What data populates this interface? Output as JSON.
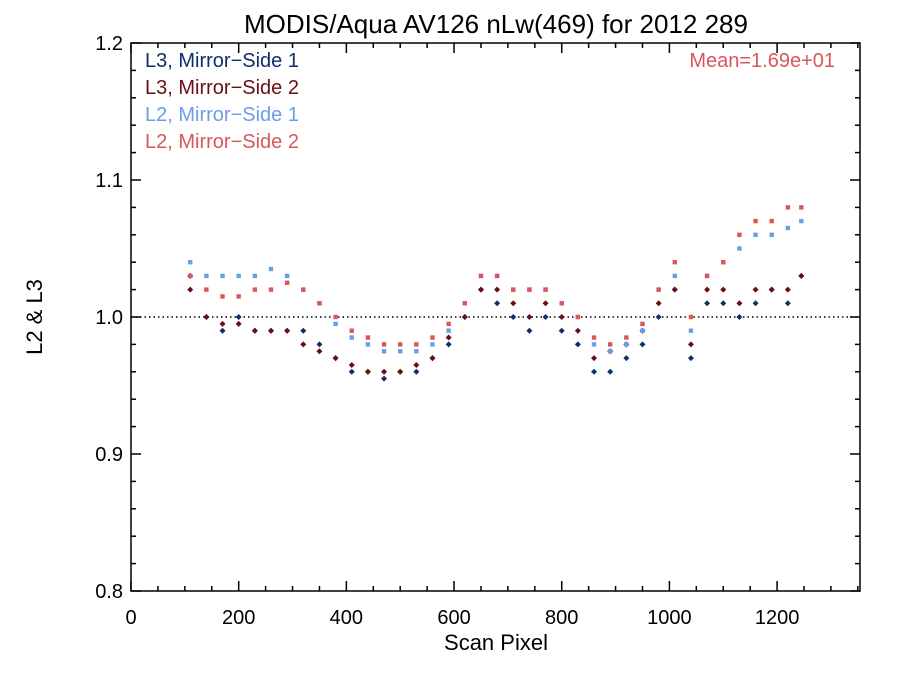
{
  "chart_data": {
    "type": "scatter",
    "title": "MODIS/Aqua AV126 nLw(469) for 2012 289",
    "xlabel": "Scan Pixel",
    "ylabel": "L2 & L3",
    "xlim": [
      0,
      1354
    ],
    "ylim": [
      0.8,
      1.2
    ],
    "x_ticks": [
      "0",
      "200",
      "400",
      "600",
      "800",
      "1000",
      "1200"
    ],
    "y_ticks": [
      "0.8",
      "0.9",
      "1.0",
      "1.1",
      "1.2"
    ],
    "reference_line": {
      "y": 1.0,
      "style": "dotted"
    },
    "annotation": {
      "text": "Mean=1.69e+01",
      "color": "#d9575a"
    },
    "legend_position": "top-left",
    "grid": false,
    "series": [
      {
        "name": "L3, Mirror−Side 1",
        "color": "#0e2f6b",
        "x": [
          110,
          140,
          170,
          200,
          230,
          260,
          290,
          320,
          350,
          380,
          410,
          440,
          470,
          500,
          530,
          560,
          590,
          620,
          650,
          680,
          710,
          740,
          770,
          800,
          830,
          860,
          890,
          920,
          950,
          980,
          1010,
          1040,
          1070,
          1100,
          1130,
          1160,
          1190,
          1220,
          1245
        ],
        "y": [
          1.03,
          1.0,
          0.99,
          1.0,
          0.99,
          0.99,
          0.99,
          0.99,
          0.98,
          0.97,
          0.96,
          0.96,
          0.955,
          0.96,
          0.96,
          0.97,
          0.98,
          1.0,
          1.02,
          1.01,
          1.0,
          0.99,
          1.0,
          0.99,
          0.98,
          0.96,
          0.96,
          0.97,
          0.98,
          1.0,
          1.02,
          0.97,
          1.01,
          1.01,
          1.0,
          1.01,
          1.02,
          1.01,
          1.03
        ]
      },
      {
        "name": "L3, Mirror−Side 2",
        "color": "#6b0d17",
        "x": [
          110,
          140,
          170,
          200,
          230,
          260,
          290,
          320,
          350,
          380,
          410,
          440,
          470,
          500,
          530,
          560,
          590,
          620,
          650,
          680,
          710,
          740,
          770,
          800,
          830,
          860,
          890,
          920,
          950,
          980,
          1010,
          1040,
          1070,
          1100,
          1130,
          1160,
          1190,
          1220,
          1245
        ],
        "y": [
          1.02,
          1.0,
          0.995,
          0.995,
          0.99,
          0.99,
          0.99,
          0.98,
          0.975,
          0.97,
          0.965,
          0.96,
          0.96,
          0.96,
          0.965,
          0.97,
          0.985,
          1.0,
          1.02,
          1.02,
          1.01,
          1.0,
          1.01,
          1.0,
          0.99,
          0.97,
          0.975,
          0.98,
          0.99,
          1.01,
          1.02,
          0.98,
          1.02,
          1.02,
          1.01,
          1.02,
          1.02,
          1.02,
          1.03
        ]
      },
      {
        "name": "L2, Mirror−Side 1",
        "color": "#6b9ee8",
        "x": [
          110,
          140,
          170,
          200,
          230,
          260,
          290,
          320,
          350,
          380,
          410,
          440,
          470,
          500,
          530,
          560,
          590,
          620,
          650,
          680,
          710,
          740,
          770,
          800,
          830,
          860,
          890,
          920,
          950,
          980,
          1010,
          1040,
          1070,
          1100,
          1130,
          1160,
          1190,
          1220,
          1245
        ],
        "y": [
          1.04,
          1.03,
          1.03,
          1.03,
          1.03,
          1.035,
          1.03,
          1.02,
          1.01,
          0.995,
          0.985,
          0.98,
          0.975,
          0.975,
          0.975,
          0.98,
          0.99,
          1.01,
          1.03,
          1.03,
          1.02,
          1.02,
          1.02,
          1.01,
          1.0,
          0.98,
          0.975,
          0.98,
          0.99,
          1.02,
          1.03,
          0.99,
          1.03,
          1.04,
          1.05,
          1.06,
          1.06,
          1.065,
          1.07
        ]
      },
      {
        "name": "L2, Mirror−Side 2",
        "color": "#d9575a",
        "x": [
          110,
          140,
          170,
          200,
          230,
          260,
          290,
          320,
          350,
          380,
          410,
          440,
          470,
          500,
          530,
          560,
          590,
          620,
          650,
          680,
          710,
          740,
          770,
          800,
          830,
          860,
          890,
          920,
          950,
          980,
          1010,
          1040,
          1070,
          1100,
          1130,
          1160,
          1190,
          1220,
          1245
        ],
        "y": [
          1.03,
          1.02,
          1.015,
          1.015,
          1.02,
          1.02,
          1.025,
          1.02,
          1.01,
          1.0,
          0.99,
          0.985,
          0.98,
          0.98,
          0.98,
          0.985,
          0.995,
          1.01,
          1.03,
          1.03,
          1.02,
          1.02,
          1.02,
          1.01,
          1.0,
          0.985,
          0.98,
          0.985,
          0.995,
          1.02,
          1.04,
          1.0,
          1.03,
          1.04,
          1.06,
          1.07,
          1.07,
          1.08,
          1.08
        ]
      }
    ]
  }
}
